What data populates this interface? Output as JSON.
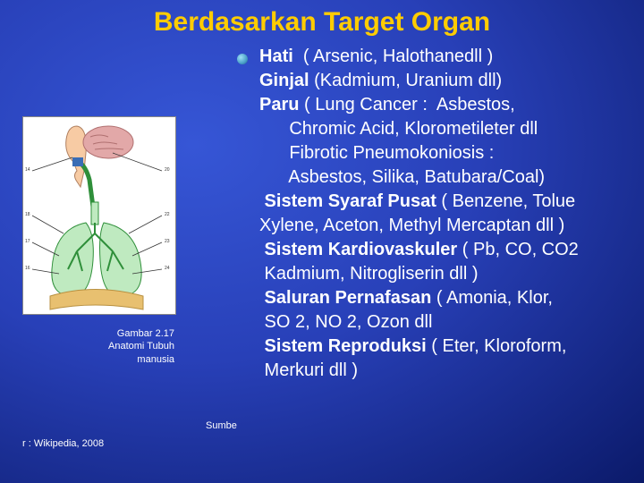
{
  "title": "Berdasarkan Target Organ",
  "figure": {
    "caption_line1": "Gambar 2.17",
    "caption_line2": "Anatomi Tubuh",
    "caption_line3": "manusia",
    "sumbe": "Sumbe",
    "source": "r : Wikipedia, 2008"
  },
  "colors": {
    "title": "#ffcc00",
    "text": "#ffffff",
    "bg_center": "#3656d6",
    "bg_edge": "#0b1a6a",
    "lung": "#9fe0a0",
    "bronchi": "#2f8f3a",
    "head": "#f7cba4",
    "airway": "#2f8f3a",
    "brain": "#e2a8a8",
    "diaphragm": "#e8c070",
    "diagram_bg": "#ffffff"
  },
  "content_lines": [
    {
      "bold": "Hati",
      "rest": "  ( Arsenic, Halothanedll )"
    },
    {
      "bold": "Ginjal",
      "rest": " (Kadmium, Uranium dll)"
    },
    {
      "bold": "Paru",
      "rest": " ( Lung Cancer :  Asbestos,"
    },
    {
      "bold": "",
      "rest": "      Chromic Acid, Klorometileter dll"
    },
    {
      "bold": "",
      "rest": "      Fibrotic Pneumokoniosis :"
    },
    {
      "bold": "",
      "rest": "      Asbestos, Silika, Batubara/Coal)"
    },
    {
      "bold": " Sistem Syaraf Pusat",
      "rest": " ( Benzene, Tolue"
    },
    {
      "bold": "",
      "rest": "Xylene, Aceton, Methyl Mercaptan dll )"
    },
    {
      "bold": " Sistem Kardiovaskuler",
      "rest": " ( Pb, CO, CO2"
    },
    {
      "bold": "",
      "rest": " Kadmium, Nitrogliserin dll )"
    },
    {
      "bold": " Saluran Pernafasan",
      "rest": " ( Amonia, Klor,"
    },
    {
      "bold": "",
      "rest": " SO 2, NO 2, Ozon dll"
    },
    {
      "bold": " Sistem Reproduksi",
      "rest": " ( Eter, Kloroform,"
    },
    {
      "bold": "",
      "rest": " Merkuri dll )"
    }
  ]
}
